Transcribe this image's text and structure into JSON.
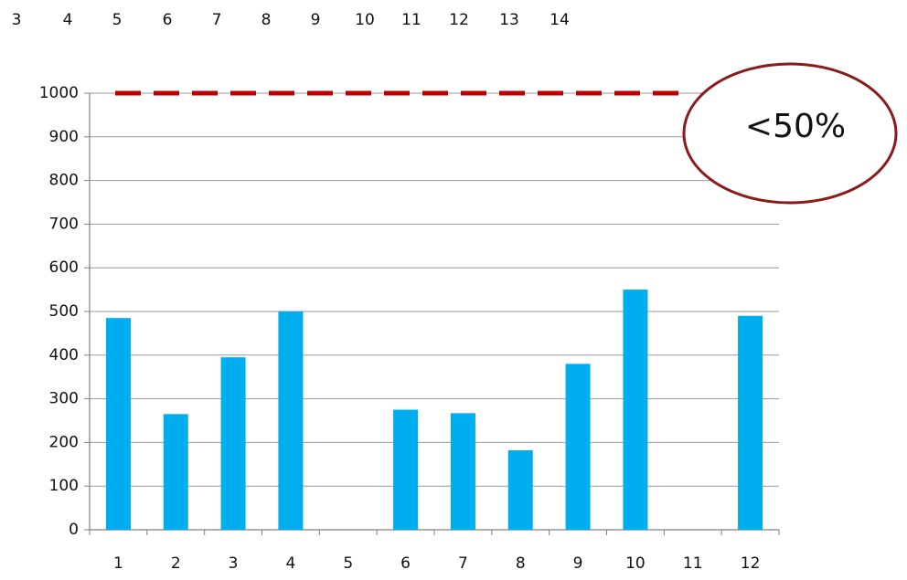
{
  "top_strip_labels": [
    "3",
    "4",
    "5",
    "6",
    "7",
    "8",
    "9",
    "10",
    "11",
    "12",
    "13",
    "14"
  ],
  "callout": {
    "text": "<50%",
    "stroke_color": "#8b1a1a"
  },
  "chart_data": {
    "type": "bar",
    "categories": [
      "1",
      "2",
      "3",
      "4",
      "5",
      "6",
      "7",
      "8",
      "9",
      "10",
      "11",
      "12"
    ],
    "values": [
      485,
      265,
      395,
      500,
      0,
      275,
      267,
      182,
      380,
      550,
      0,
      490
    ],
    "ylim": [
      0,
      1000
    ],
    "yticks": [
      0,
      100,
      200,
      300,
      400,
      500,
      600,
      700,
      800,
      900,
      1000
    ],
    "grid": true,
    "bar_color": "#00aeef",
    "reference_line": {
      "value": 1000,
      "style": "dashed",
      "color": "#c00000"
    },
    "title": "",
    "xlabel": "",
    "ylabel": ""
  }
}
